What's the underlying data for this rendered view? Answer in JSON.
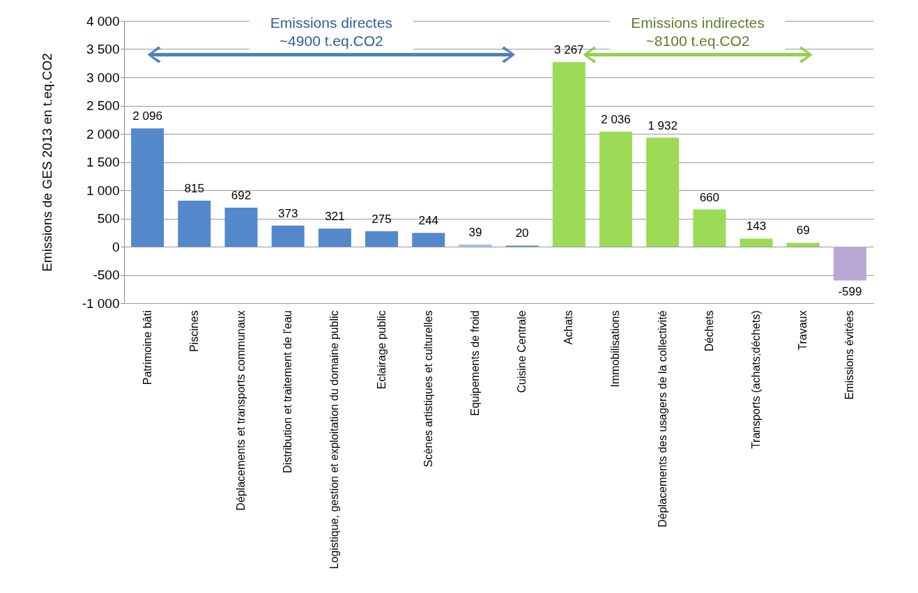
{
  "chart_data": {
    "type": "bar",
    "ylabel": "Emissions de GES  2013 en t.eq.CO2",
    "categories": [
      "Patrimoine bâti",
      "Piscines",
      "Déplacements et transports communaux",
      "Distribution et traitement de l'eau",
      "Logistique, gestion et exploitation du domaine public",
      "Eclairage public",
      "Scènes artistiques et culturelles",
      "Equipements de froid",
      "Cuisine Centrale",
      "Achats",
      "Immobilisations",
      "Déplacements des usagers de la collectivité",
      "Déchets",
      "Transports (achats;déchets)",
      "Travaux",
      "Emissions évitées"
    ],
    "values": [
      2096,
      815,
      692,
      373,
      321,
      275,
      244,
      39,
      20,
      3267,
      2036,
      1932,
      660,
      143,
      69,
      -599
    ],
    "value_labels": [
      "2 096",
      "815",
      "692",
      "373",
      "321",
      "275",
      "244",
      "39",
      "20",
      "3 267",
      "2 036",
      "1 932",
      "660",
      "143",
      "69",
      "-599"
    ],
    "colors": [
      "#5389cb",
      "#5389cb",
      "#5389cb",
      "#5389cb",
      "#5389cb",
      "#5389cb",
      "#5389cb",
      "#a9c4e6",
      "#5389cb",
      "#9bdb55",
      "#9bdb55",
      "#9bdb55",
      "#9bdb55",
      "#9bdb55",
      "#9bdb55",
      "#b9a7d3"
    ],
    "ylim": [
      -1000,
      4000
    ],
    "yticks": [
      {
        "value": -1000,
        "label": "-1 000"
      },
      -500,
      0,
      500,
      {
        "value": 1000,
        "label": "1 000"
      },
      {
        "value": 1500,
        "label": "1 500"
      },
      {
        "value": 2000,
        "label": "2 000"
      },
      {
        "value": 2500,
        "label": "2 500"
      },
      {
        "value": 3000,
        "label": "3 000"
      },
      {
        "value": 3500,
        "label": "3 500"
      },
      {
        "value": 4000,
        "label": "4 000"
      }
    ],
    "grid": "y",
    "annotations": [
      "Emissions directes\n~4900 t.eq.CO2",
      "Emissions indirectes\n~8100 t.eq.CO2"
    ]
  }
}
